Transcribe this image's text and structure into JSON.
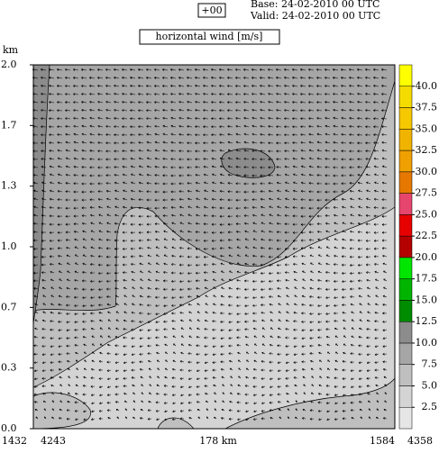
{
  "chart_data": {
    "type": "contour",
    "forecast_step": "+00",
    "base_time": "Base: 24-02-2010  00 UTC",
    "valid_time": "Valid: 24-02-2010  00 UTC",
    "title": "horizontal wind [m/s]",
    "y_label": "km",
    "ylim": [
      0,
      2
    ],
    "yticks": [
      {
        "value": 0,
        "label": "0.0"
      },
      {
        "value": 0.3333,
        "label": "0.3"
      },
      {
        "value": 0.6667,
        "label": "0.7"
      },
      {
        "value": 1,
        "label": "1.0"
      },
      {
        "value": 1.3333,
        "label": "1.3"
      },
      {
        "value": 1.6667,
        "label": "1.7"
      },
      {
        "value": 2,
        "label": "2.0"
      }
    ],
    "x_labels": [
      "1432",
      "4243",
      "178 km",
      "1584",
      "4358"
    ],
    "colorbar": {
      "lim": [
        0,
        42.5
      ],
      "bins": [
        0,
        2.5,
        5,
        7.5,
        10,
        12.5,
        15,
        17.5,
        20,
        22.5,
        25,
        27.5,
        30,
        32.5,
        35,
        37.5,
        40,
        42.5
      ],
      "colors": [
        "#e6e6e6",
        "#d4d4d4",
        "#bfbfbf",
        "#a6a6a6",
        "#8c8c8c",
        "#008c00",
        "#00b400",
        "#00e600",
        "#b40000",
        "#e60000",
        "#e6466e",
        "#e67800",
        "#f0a000",
        "#f0b400",
        "#f5c800",
        "#f5dc00",
        "#ffff00"
      ],
      "ticks": [
        2.5,
        {
          "value": 5,
          "label": "5.0"
        },
        7.5,
        {
          "value": 10,
          "label": "10.0"
        },
        12.5,
        {
          "value": 15,
          "label": "15.0"
        },
        17.5,
        {
          "value": 20,
          "label": "20.0"
        },
        22.5,
        {
          "value": 25,
          "label": "25.0"
        },
        27.5,
        {
          "value": 30,
          "label": "30.0"
        },
        32.5,
        {
          "value": 35,
          "label": "35.0"
        },
        37.5,
        {
          "value": 40,
          "label": "40.0"
        }
      ]
    }
  }
}
